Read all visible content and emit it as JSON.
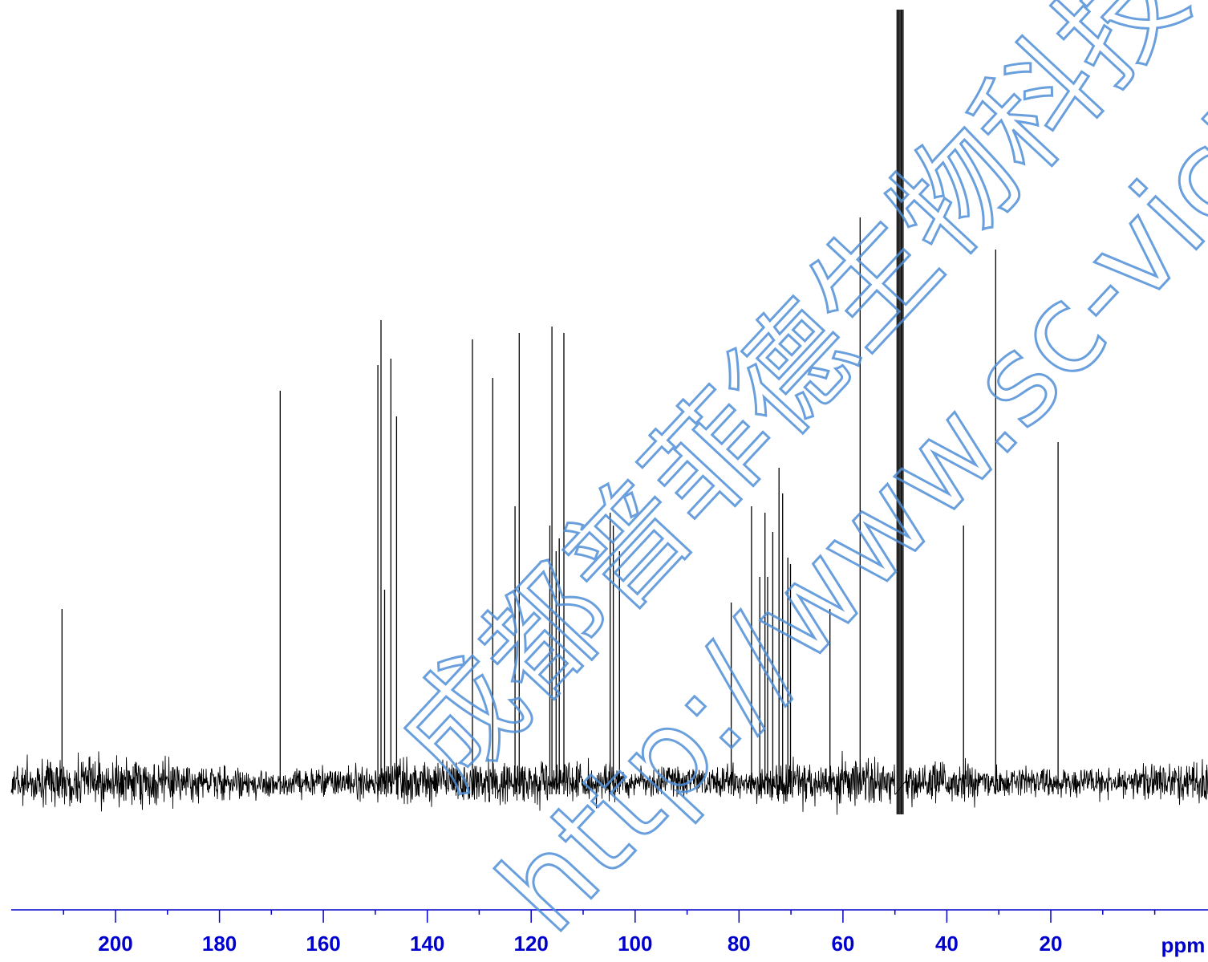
{
  "chart_data": {
    "type": "line",
    "title": "",
    "xlabel": "ppm",
    "ylabel": "",
    "xlim": [
      220,
      0
    ],
    "x_reversed": true,
    "x_ticks_major": [
      200,
      180,
      160,
      140,
      120,
      100,
      80,
      60,
      40,
      20
    ],
    "x_tick_labels": [
      "200",
      "180",
      "160",
      "140",
      "120",
      "100",
      "80",
      "60",
      "40",
      "20"
    ],
    "x_ticks_minor_step": 10,
    "y_axis_shown": false,
    "grid": false,
    "colors": {
      "axis": "#0000cc",
      "trace": "#000000",
      "watermark": "#4f8fd6"
    },
    "series": [
      {
        "values_note": "relative intensity 0-1; solvent peak clipped at top",
        "peaks": [
          {
            "x": 210.3,
            "y": 0.27
          },
          {
            "x": 168.3,
            "y": 0.61
          },
          {
            "x": 149.5,
            "y": 0.65
          },
          {
            "x": 148.9,
            "y": 0.72
          },
          {
            "x": 148.2,
            "y": 0.3
          },
          {
            "x": 147.0,
            "y": 0.66
          },
          {
            "x": 145.9,
            "y": 0.57
          },
          {
            "x": 131.3,
            "y": 0.69
          },
          {
            "x": 127.4,
            "y": 0.63
          },
          {
            "x": 123.1,
            "y": 0.43
          },
          {
            "x": 122.3,
            "y": 0.7
          },
          {
            "x": 116.4,
            "y": 0.4
          },
          {
            "x": 116.0,
            "y": 0.71
          },
          {
            "x": 115.2,
            "y": 0.36
          },
          {
            "x": 114.6,
            "y": 0.38
          },
          {
            "x": 113.7,
            "y": 0.7
          },
          {
            "x": 104.8,
            "y": 0.42
          },
          {
            "x": 104.2,
            "y": 0.4
          },
          {
            "x": 103.0,
            "y": 0.36
          },
          {
            "x": 81.5,
            "y": 0.28
          },
          {
            "x": 77.6,
            "y": 0.43
          },
          {
            "x": 76.0,
            "y": 0.32
          },
          {
            "x": 75.0,
            "y": 0.42
          },
          {
            "x": 74.5,
            "y": 0.32
          },
          {
            "x": 73.5,
            "y": 0.39
          },
          {
            "x": 72.3,
            "y": 0.49
          },
          {
            "x": 71.6,
            "y": 0.45
          },
          {
            "x": 70.6,
            "y": 0.35
          },
          {
            "x": 70.1,
            "y": 0.34
          },
          {
            "x": 62.5,
            "y": 0.27
          },
          {
            "x": 56.7,
            "y": 0.88
          },
          {
            "x": 49.0,
            "y": 1.3
          },
          {
            "x": 36.8,
            "y": 0.4
          },
          {
            "x": 30.6,
            "y": 0.83
          },
          {
            "x": 18.6,
            "y": 0.53
          }
        ]
      }
    ]
  },
  "watermark": {
    "company": "成都普菲德生物科技有限",
    "url": "http://www.sc-victo"
  }
}
